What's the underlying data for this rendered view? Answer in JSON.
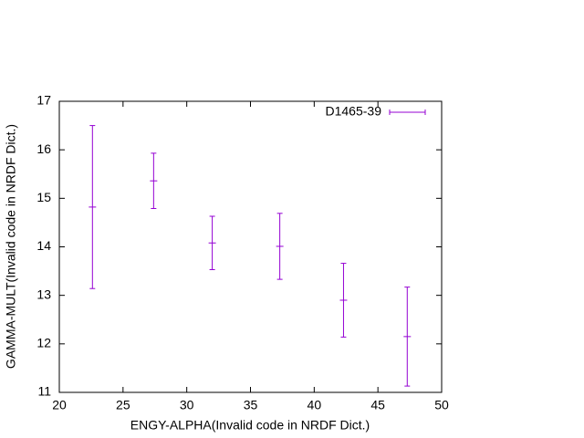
{
  "chart_data": {
    "type": "errorbar",
    "xlabel": "ENGY-ALPHA(Invalid code in NRDF Dict.)",
    "ylabel": "GAMMA-MULT(Invalid code in NRDF Dict.)",
    "x": [
      22.6,
      27.4,
      32.0,
      37.3,
      42.3,
      47.3
    ],
    "series": [
      {
        "name": "D1465-39",
        "color": "#9400d3",
        "values": [
          14.82,
          15.36,
          14.08,
          14.01,
          12.9,
          12.15
        ],
        "errors": [
          1.68,
          0.57,
          0.55,
          0.68,
          0.76,
          1.02
        ]
      }
    ],
    "xlim": [
      20,
      50
    ],
    "xticks": [
      20,
      25,
      30,
      35,
      40,
      45,
      50
    ],
    "ylim": [
      11,
      17
    ],
    "yticks": [
      11,
      12,
      13,
      14,
      15,
      16,
      17
    ],
    "grid": false,
    "legend": "top-right"
  }
}
